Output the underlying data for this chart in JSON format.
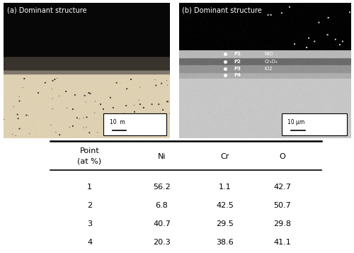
{
  "panel_a_label": "(a) Dominant structure",
  "panel_b_label": "(b) Dominant structure",
  "scale_bar_a": "10  m",
  "scale_bar_b": "10 μm",
  "sem_annotations": [
    {
      "label": "P1",
      "note": "NiO"
    },
    {
      "label": "P2",
      "note": "Cr₂O₃"
    },
    {
      "label": "P3",
      "note": "IO2"
    },
    {
      "label": "P4",
      "note": ""
    }
  ],
  "table_data": [
    [
      "1",
      "56.2",
      "1.1",
      "42.7"
    ],
    [
      "2",
      "6.8",
      "42.5",
      "50.7"
    ],
    [
      "3",
      "40.7",
      "29.5",
      "29.8"
    ],
    [
      "4",
      "20.3",
      "38.6",
      "41.1"
    ]
  ],
  "bg_color": "#ffffff",
  "optical_colors": {
    "top_black": "#080808",
    "oxide_dark": "#3a3530",
    "base_cream": "#ddd0b0"
  },
  "sem_colors": {
    "top_black": "#000000",
    "layer1_light": "#b8b8b8",
    "layer2_dark": "#787878",
    "layer3_mid": "#989898",
    "base_light": "#c8c8c8"
  }
}
